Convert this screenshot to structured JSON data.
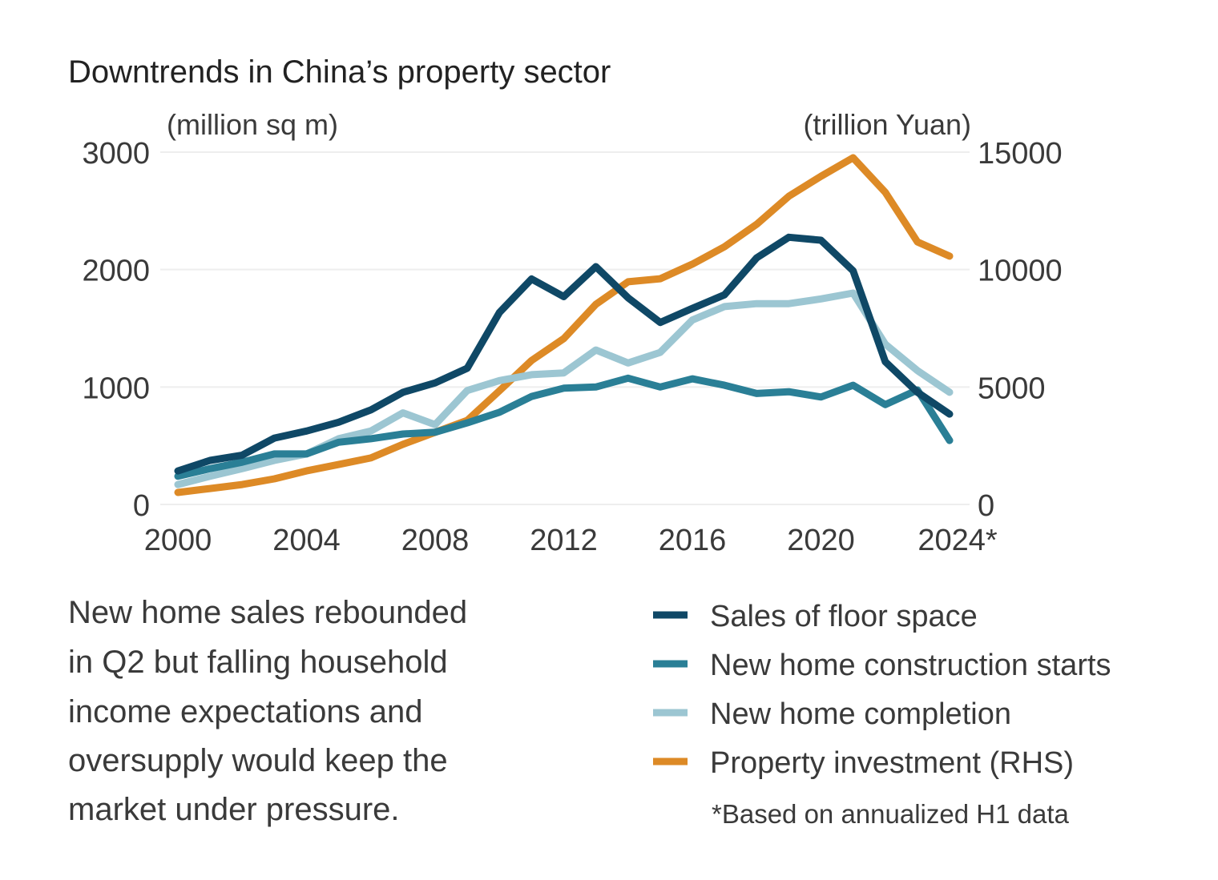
{
  "chart_data": {
    "type": "line",
    "title": "Downtrends in China’s property sector",
    "ylabel_left": "(million sq m)",
    "ylabel_right": "(trillion Yuan)",
    "ylim_left": [
      0,
      3000
    ],
    "ylim_right": [
      0,
      15000
    ],
    "yticks_left": [
      "0",
      "1000",
      "2000",
      "3000"
    ],
    "yticks_right": [
      "0",
      "5000",
      "10000",
      "15000"
    ],
    "xticks": [
      "2000",
      "2004",
      "2008",
      "2012",
      "2016",
      "2020",
      "2024*"
    ],
    "grid": true,
    "legend_position": "bottom-right",
    "x": [
      2000,
      2001,
      2002,
      2003,
      2004,
      2005,
      2006,
      2007,
      2008,
      2009,
      2010,
      2011,
      2012,
      2013,
      2014,
      2015,
      2016,
      2017,
      2018,
      2019,
      2020,
      2021,
      2022,
      2023,
      2024
    ],
    "series": [
      {
        "name": "Sales of floor space",
        "axis": "left",
        "color": "#0f4866",
        "values": [
          286,
          375,
          420,
          565,
          625,
          700,
          805,
          955,
          1035,
          1160,
          1635,
          1920,
          1770,
          2025,
          1760,
          1550,
          1670,
          1785,
          2100,
          2275,
          2250,
          1990,
          1215,
          955,
          770
        ]
      },
      {
        "name": "New home construction starts",
        "axis": "left",
        "color": "#2a7f96",
        "values": [
          240,
          305,
          360,
          430,
          430,
          530,
          560,
          600,
          615,
          695,
          785,
          920,
          990,
          1000,
          1075,
          1000,
          1070,
          1015,
          945,
          960,
          915,
          1015,
          850,
          975,
          545
        ]
      },
      {
        "name": "New home completion",
        "axis": "left",
        "color": "#9cc6d2",
        "values": [
          170,
          240,
          305,
          375,
          430,
          560,
          625,
          780,
          680,
          970,
          1055,
          1105,
          1120,
          1315,
          1205,
          1295,
          1570,
          1685,
          1710,
          1710,
          1750,
          1800,
          1365,
          1140,
          955
        ]
      },
      {
        "name": "Property investment (RHS)",
        "axis": "right",
        "color": "#dd8a26",
        "values": [
          510,
          680,
          850,
          1090,
          1430,
          1700,
          1980,
          2560,
          3070,
          3580,
          4840,
          6130,
          7060,
          8520,
          9480,
          9610,
          10230,
          10970,
          11930,
          13120,
          13970,
          14760,
          13290,
          11180,
          10570
        ]
      }
    ],
    "footnote": "*Based on annualized H1 data"
  },
  "caption": [
    "New home sales rebounded",
    "in Q2 but falling household",
    "income expectations and",
    "oversupply would keep the",
    "market under pressure."
  ]
}
